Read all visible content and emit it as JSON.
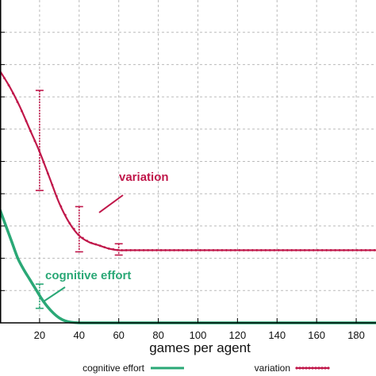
{
  "chart_data": {
    "type": "line",
    "title": "",
    "xlabel": "games per agent",
    "ylabel": "",
    "xlim": [
      0,
      190
    ],
    "ylim": [
      0,
      10
    ],
    "grid": true,
    "x_ticks": [
      "20",
      "40",
      "60",
      "80",
      "100",
      "120",
      "140",
      "160",
      "180"
    ],
    "x_tick_values": [
      20,
      40,
      60,
      80,
      100,
      120,
      140,
      160,
      180
    ],
    "y_grid_values": [
      1,
      2,
      3,
      4,
      5,
      6,
      7,
      8,
      9
    ],
    "legend_position": "bottom",
    "series": [
      {
        "name": "variation",
        "color": "#c0174a",
        "marker": "dot",
        "x": [
          0,
          5,
          10,
          15,
          20,
          25,
          30,
          35,
          40,
          45,
          50,
          55,
          60,
          65,
          70,
          80,
          90,
          100,
          110,
          120,
          130,
          140,
          150,
          160,
          170,
          180,
          190
        ],
        "y": [
          7.8,
          7.3,
          6.7,
          6.0,
          5.3,
          4.5,
          3.7,
          3.1,
          2.7,
          2.5,
          2.4,
          2.3,
          2.25,
          2.25,
          2.25,
          2.25,
          2.25,
          2.25,
          2.25,
          2.25,
          2.25,
          2.25,
          2.25,
          2.25,
          2.25,
          2.25,
          2.25
        ],
        "error_bars": [
          {
            "x": 20,
            "low": 4.1,
            "high": 7.2
          },
          {
            "x": 40,
            "low": 2.2,
            "high": 3.6
          },
          {
            "x": 60,
            "low": 2.1,
            "high": 2.45
          }
        ]
      },
      {
        "name": "cognitive effort",
        "color": "#2aa876",
        "marker": "none",
        "x": [
          0,
          3,
          6,
          9,
          12,
          15,
          18,
          21,
          24,
          27,
          30,
          33,
          36,
          40,
          45,
          50,
          60,
          70,
          80,
          100,
          120,
          140,
          160,
          180,
          190
        ],
        "y": [
          3.5,
          3.0,
          2.5,
          2.0,
          1.65,
          1.35,
          1.05,
          0.75,
          0.5,
          0.3,
          0.15,
          0.06,
          0.02,
          0,
          0,
          0,
          0,
          0,
          0,
          0,
          0,
          0,
          0,
          0,
          0
        ],
        "error_bars": [
          {
            "x": 20,
            "low": 0.45,
            "high": 1.2
          }
        ]
      }
    ],
    "annotations": [
      {
        "text": "variation",
        "series": "variation",
        "color": "#c0174a"
      },
      {
        "text": "cognitive effort",
        "series": "cognitive effort",
        "color": "#2aa876"
      }
    ]
  }
}
